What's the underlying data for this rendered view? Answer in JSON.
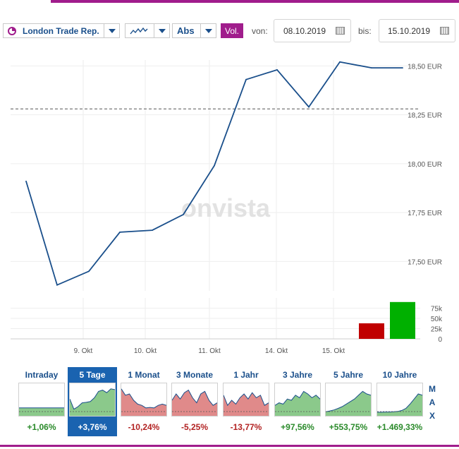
{
  "toolbar": {
    "exchange_label": "London Trade Rep.",
    "chart_style_icon": "line-chart-icon",
    "mode_label": "Abs",
    "vol_label": "Vol.",
    "from_label": "von:",
    "from_date": "08.10.2019",
    "to_label": "bis:",
    "to_date": "15.10.2019"
  },
  "colors": {
    "line": "#1a4f8b",
    "accent": "#a01d8c",
    "volume_down": "#c00000",
    "volume_up": "#00b000",
    "positive": "#2a8a2a",
    "negative": "#b22222"
  },
  "watermark": "onvista",
  "chart_data": {
    "type": "line",
    "title": "",
    "x_ticks": [
      "9. Okt",
      "10. Okt",
      "11. Okt",
      "14. Okt",
      "15. Okt"
    ],
    "y_ticks": [
      "17,50 EUR",
      "17,75 EUR",
      "18,00 EUR",
      "18,25 EUR",
      "18,50 EUR"
    ],
    "y_tick_values": [
      17.5,
      17.75,
      18.0,
      18.25,
      18.5
    ],
    "ylim": [
      17.35,
      18.53
    ],
    "reference_line": 18.28,
    "series": [
      {
        "values": [
          17.91,
          17.38,
          17.45,
          17.65,
          17.66,
          17.74,
          17.99,
          18.43,
          18.48,
          18.29,
          18.52,
          18.49,
          18.49
        ]
      }
    ],
    "volume": {
      "y_ticks": [
        "75k",
        "50k",
        "25k",
        "0"
      ],
      "y_tick_values": [
        75000,
        50000,
        25000,
        0
      ],
      "ylim": [
        0,
        100000
      ],
      "bars": [
        {
          "index": 11,
          "value": 38000,
          "color": "#c00000"
        },
        {
          "index": 12,
          "value": 90000,
          "color": "#00b000"
        }
      ]
    }
  },
  "periods": [
    {
      "label": "Intraday",
      "change": "+1,06%",
      "positive": true,
      "active": false,
      "spark": [
        0.2,
        0.2,
        0.2,
        0.2,
        0.2,
        0.2,
        0.2,
        0.2,
        0.2,
        0.2,
        0.2,
        0.2
      ],
      "fill": "#8bc98b"
    },
    {
      "label": "5 Tage",
      "change": "+3,76%",
      "positive": true,
      "active": true,
      "spark": [
        0.55,
        0.15,
        0.25,
        0.4,
        0.42,
        0.45,
        0.6,
        0.85,
        0.9,
        0.8,
        0.95,
        0.92
      ],
      "fill": "#8bc98b"
    },
    {
      "label": "1 Monat",
      "change": "-10,24%",
      "positive": false,
      "active": false,
      "spark": [
        0.95,
        0.7,
        0.75,
        0.5,
        0.35,
        0.3,
        0.2,
        0.22,
        0.2,
        0.3,
        0.35,
        0.3
      ],
      "fill": "#e08a8a"
    },
    {
      "label": "3 Monate",
      "change": "-5,25%",
      "positive": false,
      "active": false,
      "spark": [
        0.5,
        0.75,
        0.55,
        0.8,
        0.9,
        0.6,
        0.4,
        0.75,
        0.85,
        0.5,
        0.3,
        0.4
      ],
      "fill": "#e08a8a"
    },
    {
      "label": "1 Jahr",
      "change": "-13,77%",
      "positive": false,
      "active": false,
      "spark": [
        0.7,
        0.3,
        0.5,
        0.35,
        0.6,
        0.75,
        0.55,
        0.8,
        0.6,
        0.7,
        0.3,
        0.4
      ],
      "fill": "#e08a8a"
    },
    {
      "label": "3 Jahre",
      "change": "+97,56%",
      "positive": true,
      "active": false,
      "spark": [
        0.3,
        0.4,
        0.35,
        0.55,
        0.5,
        0.7,
        0.6,
        0.85,
        0.75,
        0.6,
        0.7,
        0.55
      ],
      "fill": "#8bc98b"
    },
    {
      "label": "5 Jahre",
      "change": "+553,75%",
      "positive": true,
      "active": false,
      "spark": [
        0.05,
        0.08,
        0.12,
        0.18,
        0.25,
        0.35,
        0.45,
        0.55,
        0.7,
        0.85,
        0.75,
        0.7
      ],
      "fill": "#8bc98b"
    },
    {
      "label": "10 Jahre",
      "change": "+1.469,33%",
      "positive": true,
      "active": false,
      "spark": [
        0.03,
        0.03,
        0.04,
        0.04,
        0.05,
        0.06,
        0.1,
        0.18,
        0.35,
        0.55,
        0.75,
        0.7
      ],
      "fill": "#8bc98b"
    }
  ],
  "max_label": [
    "M",
    "A",
    "X"
  ]
}
